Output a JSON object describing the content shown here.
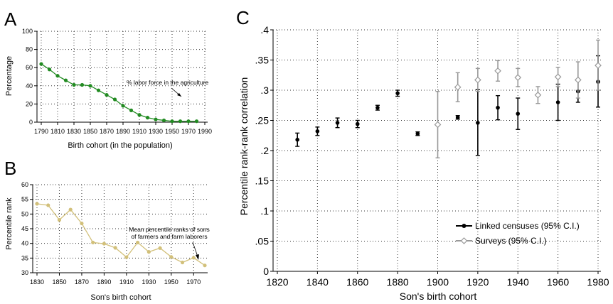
{
  "chart_data": [
    {
      "panel": "A",
      "type": "line",
      "xlabel": "Birth cohort (in the population)",
      "ylabel": "Percentage",
      "xlim": [
        1790,
        1990
      ],
      "ylim": [
        0,
        100
      ],
      "xticks": [
        "1790",
        "1810",
        "1830",
        "1850",
        "1870",
        "1890",
        "1910",
        "1930",
        "1950",
        "1970",
        "1990"
      ],
      "yticks": [
        "0",
        "20",
        "40",
        "60",
        "80",
        "100"
      ],
      "color": "#228b22",
      "annotation": "% labor force in the agriculture",
      "x": [
        1790,
        1800,
        1810,
        1820,
        1830,
        1840,
        1850,
        1860,
        1870,
        1880,
        1890,
        1900,
        1910,
        1920,
        1930,
        1940,
        1950,
        1960,
        1970,
        1980
      ],
      "y": [
        64,
        58,
        51,
        46,
        41,
        41,
        40,
        35,
        30,
        25,
        18,
        13,
        8,
        5,
        3,
        2,
        1,
        1,
        1,
        1
      ]
    },
    {
      "panel": "B",
      "type": "line",
      "xlabel": "Son's birth cohort",
      "ylabel": "Percentile rank",
      "xlim": [
        1830,
        1980
      ],
      "ylim": [
        30,
        60
      ],
      "xticks": [
        "1830",
        "1850",
        "1870",
        "1890",
        "1910",
        "1930",
        "1950",
        "1970"
      ],
      "yticks": [
        "30",
        "35",
        "40",
        "45",
        "50",
        "55",
        "60"
      ],
      "color": "#d2c07a",
      "annotation": [
        "Mean percentile ranks of sons",
        "of farmers and farm laborers"
      ],
      "x": [
        1830,
        1840,
        1850,
        1860,
        1870,
        1880,
        1890,
        1900,
        1910,
        1920,
        1930,
        1940,
        1950,
        1960,
        1970,
        1980
      ],
      "y": [
        53.5,
        53,
        48,
        51.5,
        46.8,
        40.3,
        39.9,
        38.5,
        35.3,
        40.3,
        37.1,
        38.4,
        35.4,
        33.5,
        35.1,
        32.5
      ]
    },
    {
      "panel": "C",
      "type": "scatter",
      "xlabel": "Son's birth cohort",
      "ylabel": "Percentile rank-rank correlation",
      "xlim": [
        1820,
        1980
      ],
      "ylim": [
        0,
        0.4
      ],
      "xticks": [
        "1820",
        "1840",
        "1860",
        "1880",
        "1900",
        "1920",
        "1940",
        "1960",
        "1980"
      ],
      "yticks": [
        "0",
        ".05",
        ".1",
        ".15",
        ".2",
        ".25",
        ".3",
        ".35",
        ".4"
      ],
      "legend_position": "bottom-right",
      "series": [
        {
          "name": "Linked censuses (95% C.I.)",
          "color": "#000000",
          "marker": "circle",
          "points": [
            {
              "x": 1830,
              "y": 0.218,
              "lo": 0.207,
              "hi": 0.229
            },
            {
              "x": 1840,
              "y": 0.232,
              "lo": 0.225,
              "hi": 0.239
            },
            {
              "x": 1850,
              "y": 0.246,
              "lo": 0.238,
              "hi": 0.254
            },
            {
              "x": 1860,
              "y": 0.244,
              "lo": 0.238,
              "hi": 0.25
            },
            {
              "x": 1870,
              "y": 0.271,
              "lo": 0.267,
              "hi": 0.275
            },
            {
              "x": 1880,
              "y": 0.295,
              "lo": 0.29,
              "hi": 0.3
            },
            {
              "x": 1890,
              "y": 0.228,
              "lo": 0.225,
              "hi": 0.231
            },
            {
              "x": 1910,
              "y": 0.255,
              "lo": 0.252,
              "hi": 0.258
            },
            {
              "x": 1920,
              "y": 0.246,
              "lo": 0.192,
              "hi": 0.301
            },
            {
              "x": 1930,
              "y": 0.271,
              "lo": 0.251,
              "hi": 0.291
            },
            {
              "x": 1940,
              "y": 0.261,
              "lo": 0.235,
              "hi": 0.287
            },
            {
              "x": 1960,
              "y": 0.28,
              "lo": 0.25,
              "hi": 0.31
            },
            {
              "x": 1970,
              "y": 0.298,
              "lo": 0.28,
              "hi": 0.316
            },
            {
              "x": 1980,
              "y": 0.314,
              "lo": 0.272,
              "hi": 0.357
            }
          ]
        },
        {
          "name": "Surveys (95% C.I.)",
          "color": "#999999",
          "marker": "diamond",
          "points": [
            {
              "x": 1900,
              "y": 0.243,
              "lo": 0.188,
              "hi": 0.298
            },
            {
              "x": 1910,
              "y": 0.305,
              "lo": 0.281,
              "hi": 0.329
            },
            {
              "x": 1920,
              "y": 0.317,
              "lo": 0.298,
              "hi": 0.336
            },
            {
              "x": 1930,
              "y": 0.332,
              "lo": 0.315,
              "hi": 0.349
            },
            {
              "x": 1940,
              "y": 0.321,
              "lo": 0.306,
              "hi": 0.336
            },
            {
              "x": 1950,
              "y": 0.292,
              "lo": 0.278,
              "hi": 0.306
            },
            {
              "x": 1960,
              "y": 0.322,
              "lo": 0.306,
              "hi": 0.338
            },
            {
              "x": 1970,
              "y": 0.317,
              "lo": 0.287,
              "hi": 0.347
            },
            {
              "x": 1980,
              "y": 0.341,
              "lo": 0.3,
              "hi": 0.383
            }
          ]
        }
      ]
    }
  ],
  "panel_letters": [
    "A",
    "B",
    "C"
  ]
}
